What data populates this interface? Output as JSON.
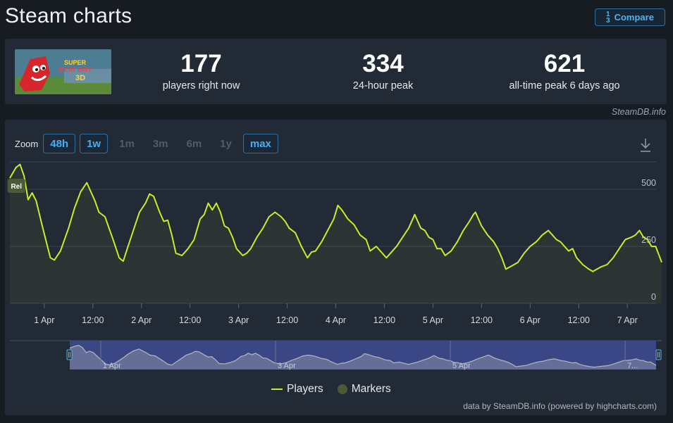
{
  "header": {
    "title": "Steam charts",
    "compare_label": "Compare",
    "compare_icon": "sort-numeric-icon"
  },
  "stats": [
    {
      "value": "177",
      "label": "players right now"
    },
    {
      "value": "334",
      "label": "24-hour peak"
    },
    {
      "value": "621",
      "label": "all-time peak 6 days ago"
    }
  ],
  "game": {
    "thumb_text_1": "SUPER",
    "thumb_text_2": "MEAT BOY",
    "thumb_text_3": "3D"
  },
  "credit_top": "SteamDB.info",
  "zoom": {
    "label": "Zoom",
    "buttons": [
      {
        "label": "48h",
        "state": "active"
      },
      {
        "label": "1w",
        "state": "active"
      },
      {
        "label": "1m",
        "state": "disabled"
      },
      {
        "label": "3m",
        "state": "disabled"
      },
      {
        "label": "6m",
        "state": "disabled"
      },
      {
        "label": "1y",
        "state": "disabled"
      },
      {
        "label": "max",
        "state": "active"
      }
    ]
  },
  "chart_data": {
    "type": "line",
    "title": "",
    "xlabel": "",
    "ylabel": "",
    "ylim": [
      0,
      621
    ],
    "xlim": [
      "2025-03-31T15:30",
      "2025-04-07T08:30"
    ],
    "grid": true,
    "y_ticks": [
      0,
      250,
      500
    ],
    "x_ticks": [
      {
        "label": "1 Apr",
        "t": "2025-04-01T00:00"
      },
      {
        "label": "12:00",
        "t": "2025-04-01T12:00"
      },
      {
        "label": "2 Apr",
        "t": "2025-04-02T00:00"
      },
      {
        "label": "12:00",
        "t": "2025-04-02T12:00"
      },
      {
        "label": "3 Apr",
        "t": "2025-04-03T00:00"
      },
      {
        "label": "12:00",
        "t": "2025-04-03T12:00"
      },
      {
        "label": "4 Apr",
        "t": "2025-04-04T00:00"
      },
      {
        "label": "12:00",
        "t": "2025-04-04T12:00"
      },
      {
        "label": "5 Apr",
        "t": "2025-04-05T00:00"
      },
      {
        "label": "12:00",
        "t": "2025-04-05T12:00"
      },
      {
        "label": "6 Apr",
        "t": "2025-04-06T00:00"
      },
      {
        "label": "12:00",
        "t": "2025-04-06T12:00"
      },
      {
        "label": "7 Apr",
        "t": "2025-04-07T00:00"
      }
    ],
    "navigator_ticks": [
      {
        "label": "1 Apr",
        "t": "2025-04-01T00:00"
      },
      {
        "label": "3 Apr",
        "t": "2025-04-03T00:00"
      },
      {
        "label": "5 Apr",
        "t": "2025-04-05T00:00"
      },
      {
        "label": "7...",
        "t": "2025-04-07T00:00"
      }
    ],
    "legend": {
      "position": "bottom-center",
      "entries": [
        "Players",
        "Markers"
      ]
    },
    "colors": {
      "players": "#c5ee2b",
      "markers": "#4d5a38"
    },
    "markers": [
      {
        "label": "Rel",
        "t": "2025-03-31T16:30"
      }
    ],
    "series": [
      {
        "name": "Players",
        "points": [
          [
            "2025-03-31T15:30",
            550
          ],
          [
            "2025-03-31T17:00",
            596
          ],
          [
            "2025-03-31T18:00",
            610
          ],
          [
            "2025-03-31T19:00",
            560
          ],
          [
            "2025-03-31T20:00",
            455
          ],
          [
            "2025-03-31T21:00",
            485
          ],
          [
            "2025-03-31T22:00",
            450
          ],
          [
            "2025-03-31T23:30",
            340
          ],
          [
            "2025-04-01T00:30",
            270
          ],
          [
            "2025-04-01T01:30",
            200
          ],
          [
            "2025-04-01T02:30",
            190
          ],
          [
            "2025-04-01T04:00",
            230
          ],
          [
            "2025-04-01T06:00",
            330
          ],
          [
            "2025-04-01T07:30",
            420
          ],
          [
            "2025-04-01T09:00",
            490
          ],
          [
            "2025-04-01T10:30",
            530
          ],
          [
            "2025-04-01T11:30",
            490
          ],
          [
            "2025-04-01T12:30",
            450
          ],
          [
            "2025-04-01T13:30",
            400
          ],
          [
            "2025-04-01T15:00",
            380
          ],
          [
            "2025-04-01T17:00",
            280
          ],
          [
            "2025-04-01T18:30",
            200
          ],
          [
            "2025-04-01T19:30",
            185
          ],
          [
            "2025-04-01T20:30",
            240
          ],
          [
            "2025-04-01T22:00",
            320
          ],
          [
            "2025-04-01T23:30",
            400
          ],
          [
            "2025-04-02T01:00",
            440
          ],
          [
            "2025-04-02T02:00",
            480
          ],
          [
            "2025-04-02T03:00",
            470
          ],
          [
            "2025-04-02T04:30",
            400
          ],
          [
            "2025-04-02T05:30",
            360
          ],
          [
            "2025-04-02T06:30",
            365
          ],
          [
            "2025-04-02T07:30",
            300
          ],
          [
            "2025-04-02T08:30",
            220
          ],
          [
            "2025-04-02T10:00",
            210
          ],
          [
            "2025-04-02T11:30",
            240
          ],
          [
            "2025-04-02T13:00",
            280
          ],
          [
            "2025-04-02T14:30",
            370
          ],
          [
            "2025-04-02T15:30",
            390
          ],
          [
            "2025-04-02T16:30",
            440
          ],
          [
            "2025-04-02T17:30",
            410
          ],
          [
            "2025-04-02T18:30",
            440
          ],
          [
            "2025-04-02T19:30",
            400
          ],
          [
            "2025-04-02T20:30",
            340
          ],
          [
            "2025-04-02T21:30",
            330
          ],
          [
            "2025-04-02T22:30",
            290
          ],
          [
            "2025-04-02T23:30",
            240
          ],
          [
            "2025-04-03T01:00",
            210
          ],
          [
            "2025-04-03T02:00",
            220
          ],
          [
            "2025-04-03T03:00",
            240
          ],
          [
            "2025-04-03T04:30",
            290
          ],
          [
            "2025-04-03T06:00",
            330
          ],
          [
            "2025-04-03T07:30",
            380
          ],
          [
            "2025-04-03T09:00",
            400
          ],
          [
            "2025-04-03T10:30",
            380
          ],
          [
            "2025-04-03T11:30",
            360
          ],
          [
            "2025-04-03T12:30",
            330
          ],
          [
            "2025-04-03T14:00",
            310
          ],
          [
            "2025-04-03T15:30",
            250
          ],
          [
            "2025-04-03T17:00",
            200
          ],
          [
            "2025-04-03T18:00",
            225
          ],
          [
            "2025-04-03T19:00",
            230
          ],
          [
            "2025-04-03T20:30",
            270
          ],
          [
            "2025-04-03T22:00",
            320
          ],
          [
            "2025-04-03T23:30",
            370
          ],
          [
            "2025-04-04T00:30",
            430
          ],
          [
            "2025-04-04T01:30",
            410
          ],
          [
            "2025-04-04T03:00",
            370
          ],
          [
            "2025-04-04T04:30",
            345
          ],
          [
            "2025-04-04T06:00",
            300
          ],
          [
            "2025-04-04T07:30",
            280
          ],
          [
            "2025-04-04T08:30",
            230
          ],
          [
            "2025-04-04T10:00",
            250
          ],
          [
            "2025-04-04T11:00",
            230
          ],
          [
            "2025-04-04T12:30",
            200
          ],
          [
            "2025-04-04T14:00",
            230
          ],
          [
            "2025-04-04T15:00",
            250
          ],
          [
            "2025-04-04T16:30",
            290
          ],
          [
            "2025-04-04T18:00",
            330
          ],
          [
            "2025-04-04T19:30",
            390
          ],
          [
            "2025-04-04T21:00",
            330
          ],
          [
            "2025-04-04T22:00",
            320
          ],
          [
            "2025-04-04T23:00",
            290
          ],
          [
            "2025-04-05T00:00",
            280
          ],
          [
            "2025-04-05T01:00",
            240
          ],
          [
            "2025-04-05T02:00",
            240
          ],
          [
            "2025-04-05T03:00",
            210
          ],
          [
            "2025-04-05T04:30",
            230
          ],
          [
            "2025-04-05T06:00",
            270
          ],
          [
            "2025-04-05T07:30",
            320
          ],
          [
            "2025-04-05T09:00",
            360
          ],
          [
            "2025-04-05T10:00",
            390
          ],
          [
            "2025-04-05T10:30",
            400
          ],
          [
            "2025-04-05T12:00",
            340
          ],
          [
            "2025-04-05T13:30",
            300
          ],
          [
            "2025-04-05T15:00",
            270
          ],
          [
            "2025-04-05T16:00",
            240
          ],
          [
            "2025-04-05T17:00",
            200
          ],
          [
            "2025-04-05T18:00",
            150
          ],
          [
            "2025-04-05T19:00",
            160
          ],
          [
            "2025-04-05T20:00",
            170
          ],
          [
            "2025-04-05T21:00",
            180
          ],
          [
            "2025-04-05T22:30",
            220
          ],
          [
            "2025-04-06T00:00",
            250
          ],
          [
            "2025-04-06T01:30",
            270
          ],
          [
            "2025-04-06T03:00",
            300
          ],
          [
            "2025-04-06T04:30",
            320
          ],
          [
            "2025-04-06T05:30",
            300
          ],
          [
            "2025-04-06T06:30",
            280
          ],
          [
            "2025-04-06T07:30",
            270
          ],
          [
            "2025-04-06T08:30",
            250
          ],
          [
            "2025-04-06T09:30",
            230
          ],
          [
            "2025-04-06T10:30",
            240
          ],
          [
            "2025-04-06T11:30",
            200
          ],
          [
            "2025-04-06T13:00",
            170
          ],
          [
            "2025-04-06T14:30",
            150
          ],
          [
            "2025-04-06T15:30",
            140
          ],
          [
            "2025-04-06T16:30",
            150
          ],
          [
            "2025-04-06T17:30",
            160
          ],
          [
            "2025-04-06T19:00",
            170
          ],
          [
            "2025-04-06T20:30",
            200
          ],
          [
            "2025-04-06T22:00",
            240
          ],
          [
            "2025-04-06T23:30",
            280
          ],
          [
            "2025-04-07T01:00",
            290
          ],
          [
            "2025-04-07T02:00",
            300
          ],
          [
            "2025-04-07T03:00",
            320
          ],
          [
            "2025-04-07T04:00",
            290
          ],
          [
            "2025-04-07T05:00",
            280
          ],
          [
            "2025-04-07T06:00",
            250
          ],
          [
            "2025-04-07T07:00",
            250
          ],
          [
            "2025-04-07T08:30",
            180
          ]
        ]
      }
    ]
  },
  "legend": {
    "players_label": "Players",
    "markers_label": "Markers"
  },
  "credit_bottom": "data by SteamDB.info (powered by highcharts.com)"
}
